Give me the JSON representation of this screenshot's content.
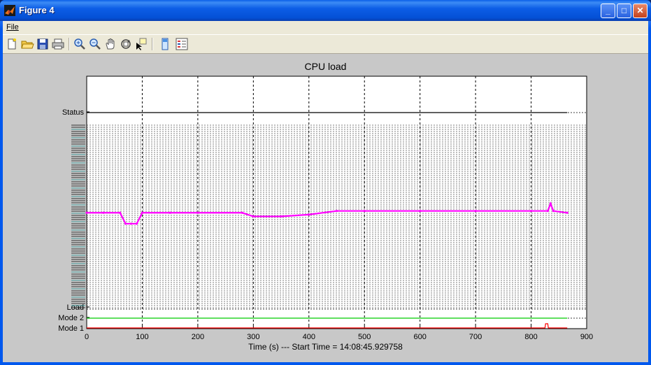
{
  "window": {
    "title": "Figure 4",
    "minimize_glyph": "_",
    "maximize_glyph": "□",
    "close_glyph": "✕"
  },
  "menu": {
    "file_label": "File"
  },
  "toolbar": {
    "tools": [
      "new-figure-icon",
      "open-file-icon",
      "save-icon",
      "print-icon",
      "zoom-in-icon",
      "zoom-out-icon",
      "pan-hand-icon",
      "rotate-3d-icon",
      "data-cursor-icon",
      "colorbar-icon",
      "legend-icon"
    ]
  },
  "colors": {
    "status_line": "#000000",
    "load_trace": "#ff00ff",
    "mode2_line": "#00cc00",
    "mode1_line": "#ff0000",
    "figure_bg": "#c8c8c8"
  },
  "chart_data": {
    "type": "line",
    "title": "CPU load",
    "xlabel": "Time (s)   ---   Start Time = 14:08:45.929758",
    "xlim": [
      0,
      900
    ],
    "xticks": [
      0,
      100,
      200,
      300,
      400,
      500,
      600,
      700,
      800,
      900
    ],
    "row_labels": [
      "Status",
      "Load",
      "Mode 2",
      "Mode 1"
    ],
    "grid": true,
    "series": [
      {
        "name": "Status",
        "x": [
          0,
          865
        ],
        "y": [
          1,
          1
        ],
        "color": "#000000"
      },
      {
        "name": "Load",
        "x": [
          0,
          30,
          60,
          70,
          80,
          90,
          100,
          150,
          200,
          280,
          300,
          350,
          400,
          450,
          500,
          600,
          700,
          800,
          830,
          835,
          840,
          865
        ],
        "y": [
          0.52,
          0.52,
          0.52,
          0.46,
          0.46,
          0.46,
          0.52,
          0.52,
          0.52,
          0.52,
          0.5,
          0.5,
          0.51,
          0.53,
          0.53,
          0.53,
          0.53,
          0.53,
          0.53,
          0.57,
          0.53,
          0.52
        ],
        "color": "#ff00ff"
      },
      {
        "name": "Mode 2",
        "x": [
          0,
          865
        ],
        "y": [
          1,
          1
        ],
        "color": "#00cc00"
      },
      {
        "name": "Mode 1",
        "x": [
          0,
          825,
          826,
          830,
          831,
          865
        ],
        "y": [
          0,
          0,
          1,
          1,
          0,
          0
        ],
        "color": "#ff0000"
      }
    ]
  }
}
